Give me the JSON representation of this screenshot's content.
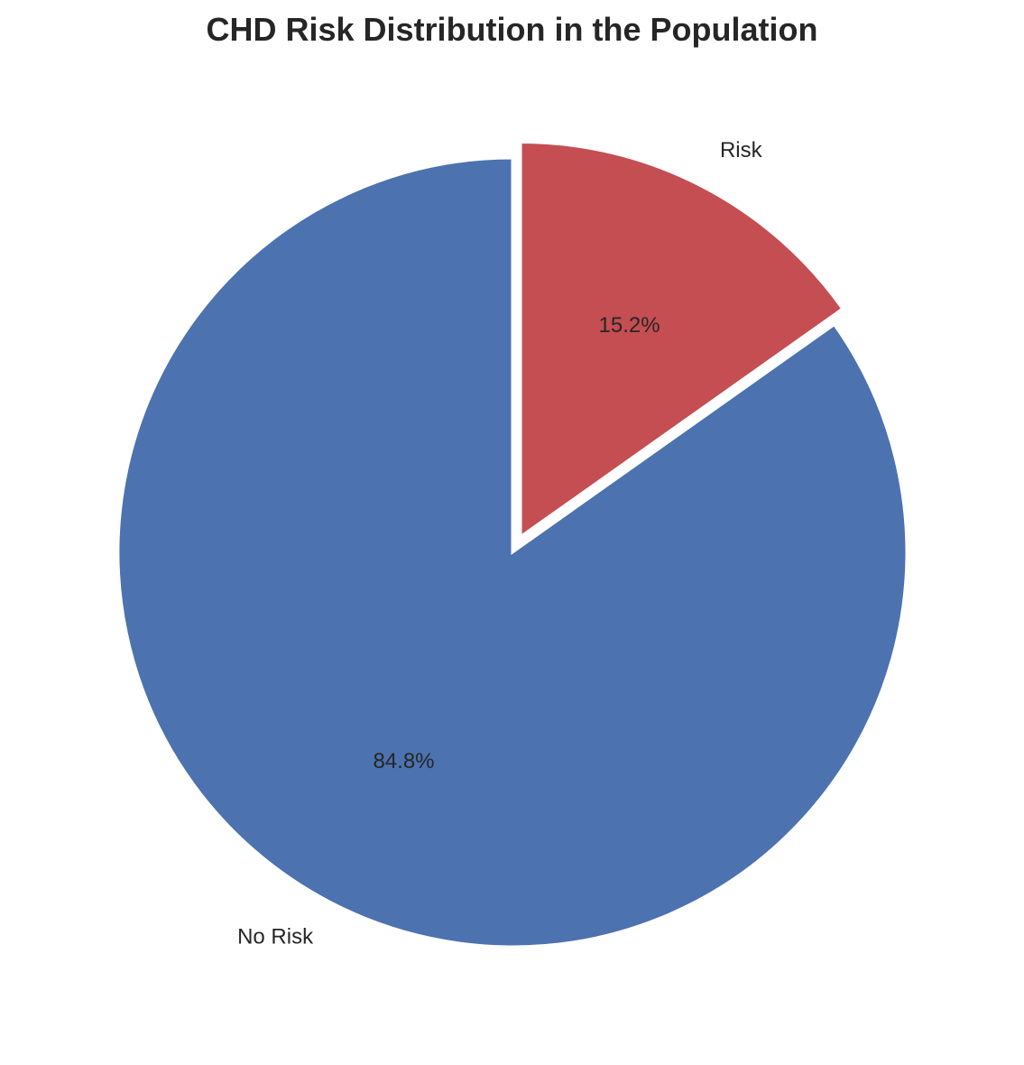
{
  "chart_data": {
    "type": "pie",
    "title": "CHD Risk Distribution in the Population",
    "slices": [
      {
        "label": "No Risk",
        "value": 84.8,
        "pct_label": "84.8%",
        "color": "#4c72b0",
        "explode": false
      },
      {
        "label": "Risk",
        "value": 15.2,
        "pct_label": "15.2%",
        "color": "#c44e52",
        "explode": true
      }
    ],
    "start": "top",
    "direction": "clockwise for Risk, counterclockwise for No Risk",
    "edge_color": "#ffffff",
    "legend": "none"
  }
}
